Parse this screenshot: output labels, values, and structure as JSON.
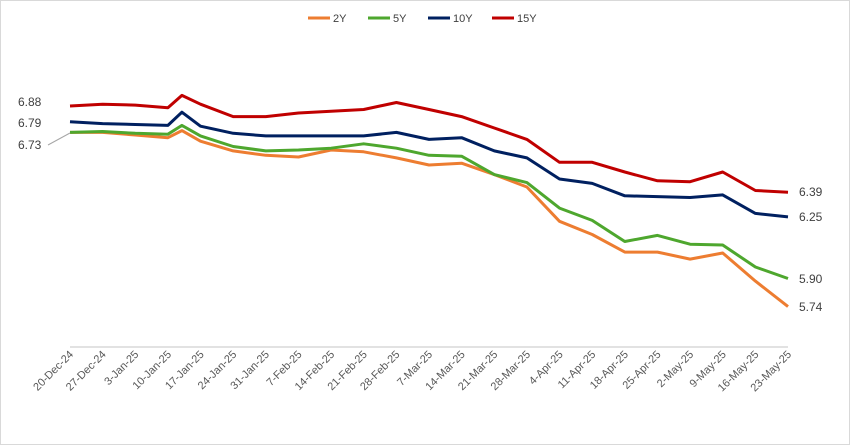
{
  "chart_data": {
    "type": "line",
    "title": "",
    "xlabel": "",
    "ylabel": "",
    "legend_position": "top",
    "grid": false,
    "ylim": [
      5.55,
      7.1
    ],
    "categories": [
      "20-Dec-24",
      "27-Dec-24",
      "3-Jan-25",
      "10-Jan-25",
      "17-Jan-25",
      "24-Jan-25",
      "31-Jan-25",
      "7-Feb-25",
      "14-Feb-25",
      "21-Feb-25",
      "28-Feb-25",
      "7-Mar-25",
      "14-Mar-25",
      "21-Mar-25",
      "28-Mar-25",
      "4-Apr-25",
      "11-Apr-25",
      "18-Apr-25",
      "25-Apr-25",
      "2-May-25",
      "9-May-25",
      "16-May-25",
      "23-May-25"
    ],
    "x": [
      "20-Dec-24",
      "27-Dec-24",
      "3-Jan-25",
      "10-Jan-25",
      "13-Jan-25",
      "17-Jan-25",
      "24-Jan-25",
      "31-Jan-25",
      "7-Feb-25",
      "14-Feb-25",
      "21-Feb-25",
      "28-Feb-25",
      "7-Mar-25",
      "14-Mar-25",
      "21-Mar-25",
      "28-Mar-25",
      "4-Apr-25",
      "11-Apr-25",
      "18-Apr-25",
      "25-Apr-25",
      "2-May-25",
      "9-May-25",
      "16-May-25",
      "23-May-25"
    ],
    "series": [
      {
        "name": "2Y",
        "color": "#ED7D31",
        "values": [
          6.73,
          6.73,
          6.715,
          6.7,
          6.74,
          6.68,
          6.625,
          6.6,
          6.59,
          6.63,
          6.62,
          6.585,
          6.545,
          6.555,
          6.49,
          6.42,
          6.225,
          6.15,
          6.05,
          6.05,
          6.01,
          6.045,
          5.885,
          5.74
        ]
      },
      {
        "name": "5Y",
        "color": "#4EA72E",
        "values": [
          6.73,
          6.735,
          6.725,
          6.72,
          6.77,
          6.71,
          6.65,
          6.625,
          6.63,
          6.64,
          6.665,
          6.64,
          6.6,
          6.595,
          6.49,
          6.445,
          6.3,
          6.23,
          6.11,
          6.145,
          6.095,
          6.09,
          5.965,
          5.9
        ]
      },
      {
        "name": "10Y",
        "color": "#002060",
        "values": [
          6.79,
          6.78,
          6.775,
          6.77,
          6.845,
          6.765,
          6.725,
          6.71,
          6.71,
          6.71,
          6.71,
          6.73,
          6.69,
          6.7,
          6.625,
          6.585,
          6.465,
          6.44,
          6.37,
          6.365,
          6.36,
          6.375,
          6.27,
          6.25
        ]
      },
      {
        "name": "15Y",
        "color": "#C00000",
        "values": [
          6.88,
          6.89,
          6.885,
          6.87,
          6.94,
          6.89,
          6.82,
          6.82,
          6.84,
          6.85,
          6.86,
          6.9,
          6.86,
          6.82,
          6.755,
          6.69,
          6.56,
          6.56,
          6.505,
          6.455,
          6.45,
          6.505,
          6.4,
          6.39
        ]
      }
    ],
    "start_labels": [
      "6.88",
      "6.79",
      "6.73"
    ],
    "end_labels": [
      "6.39",
      "6.25",
      "5.90",
      "5.74"
    ]
  }
}
